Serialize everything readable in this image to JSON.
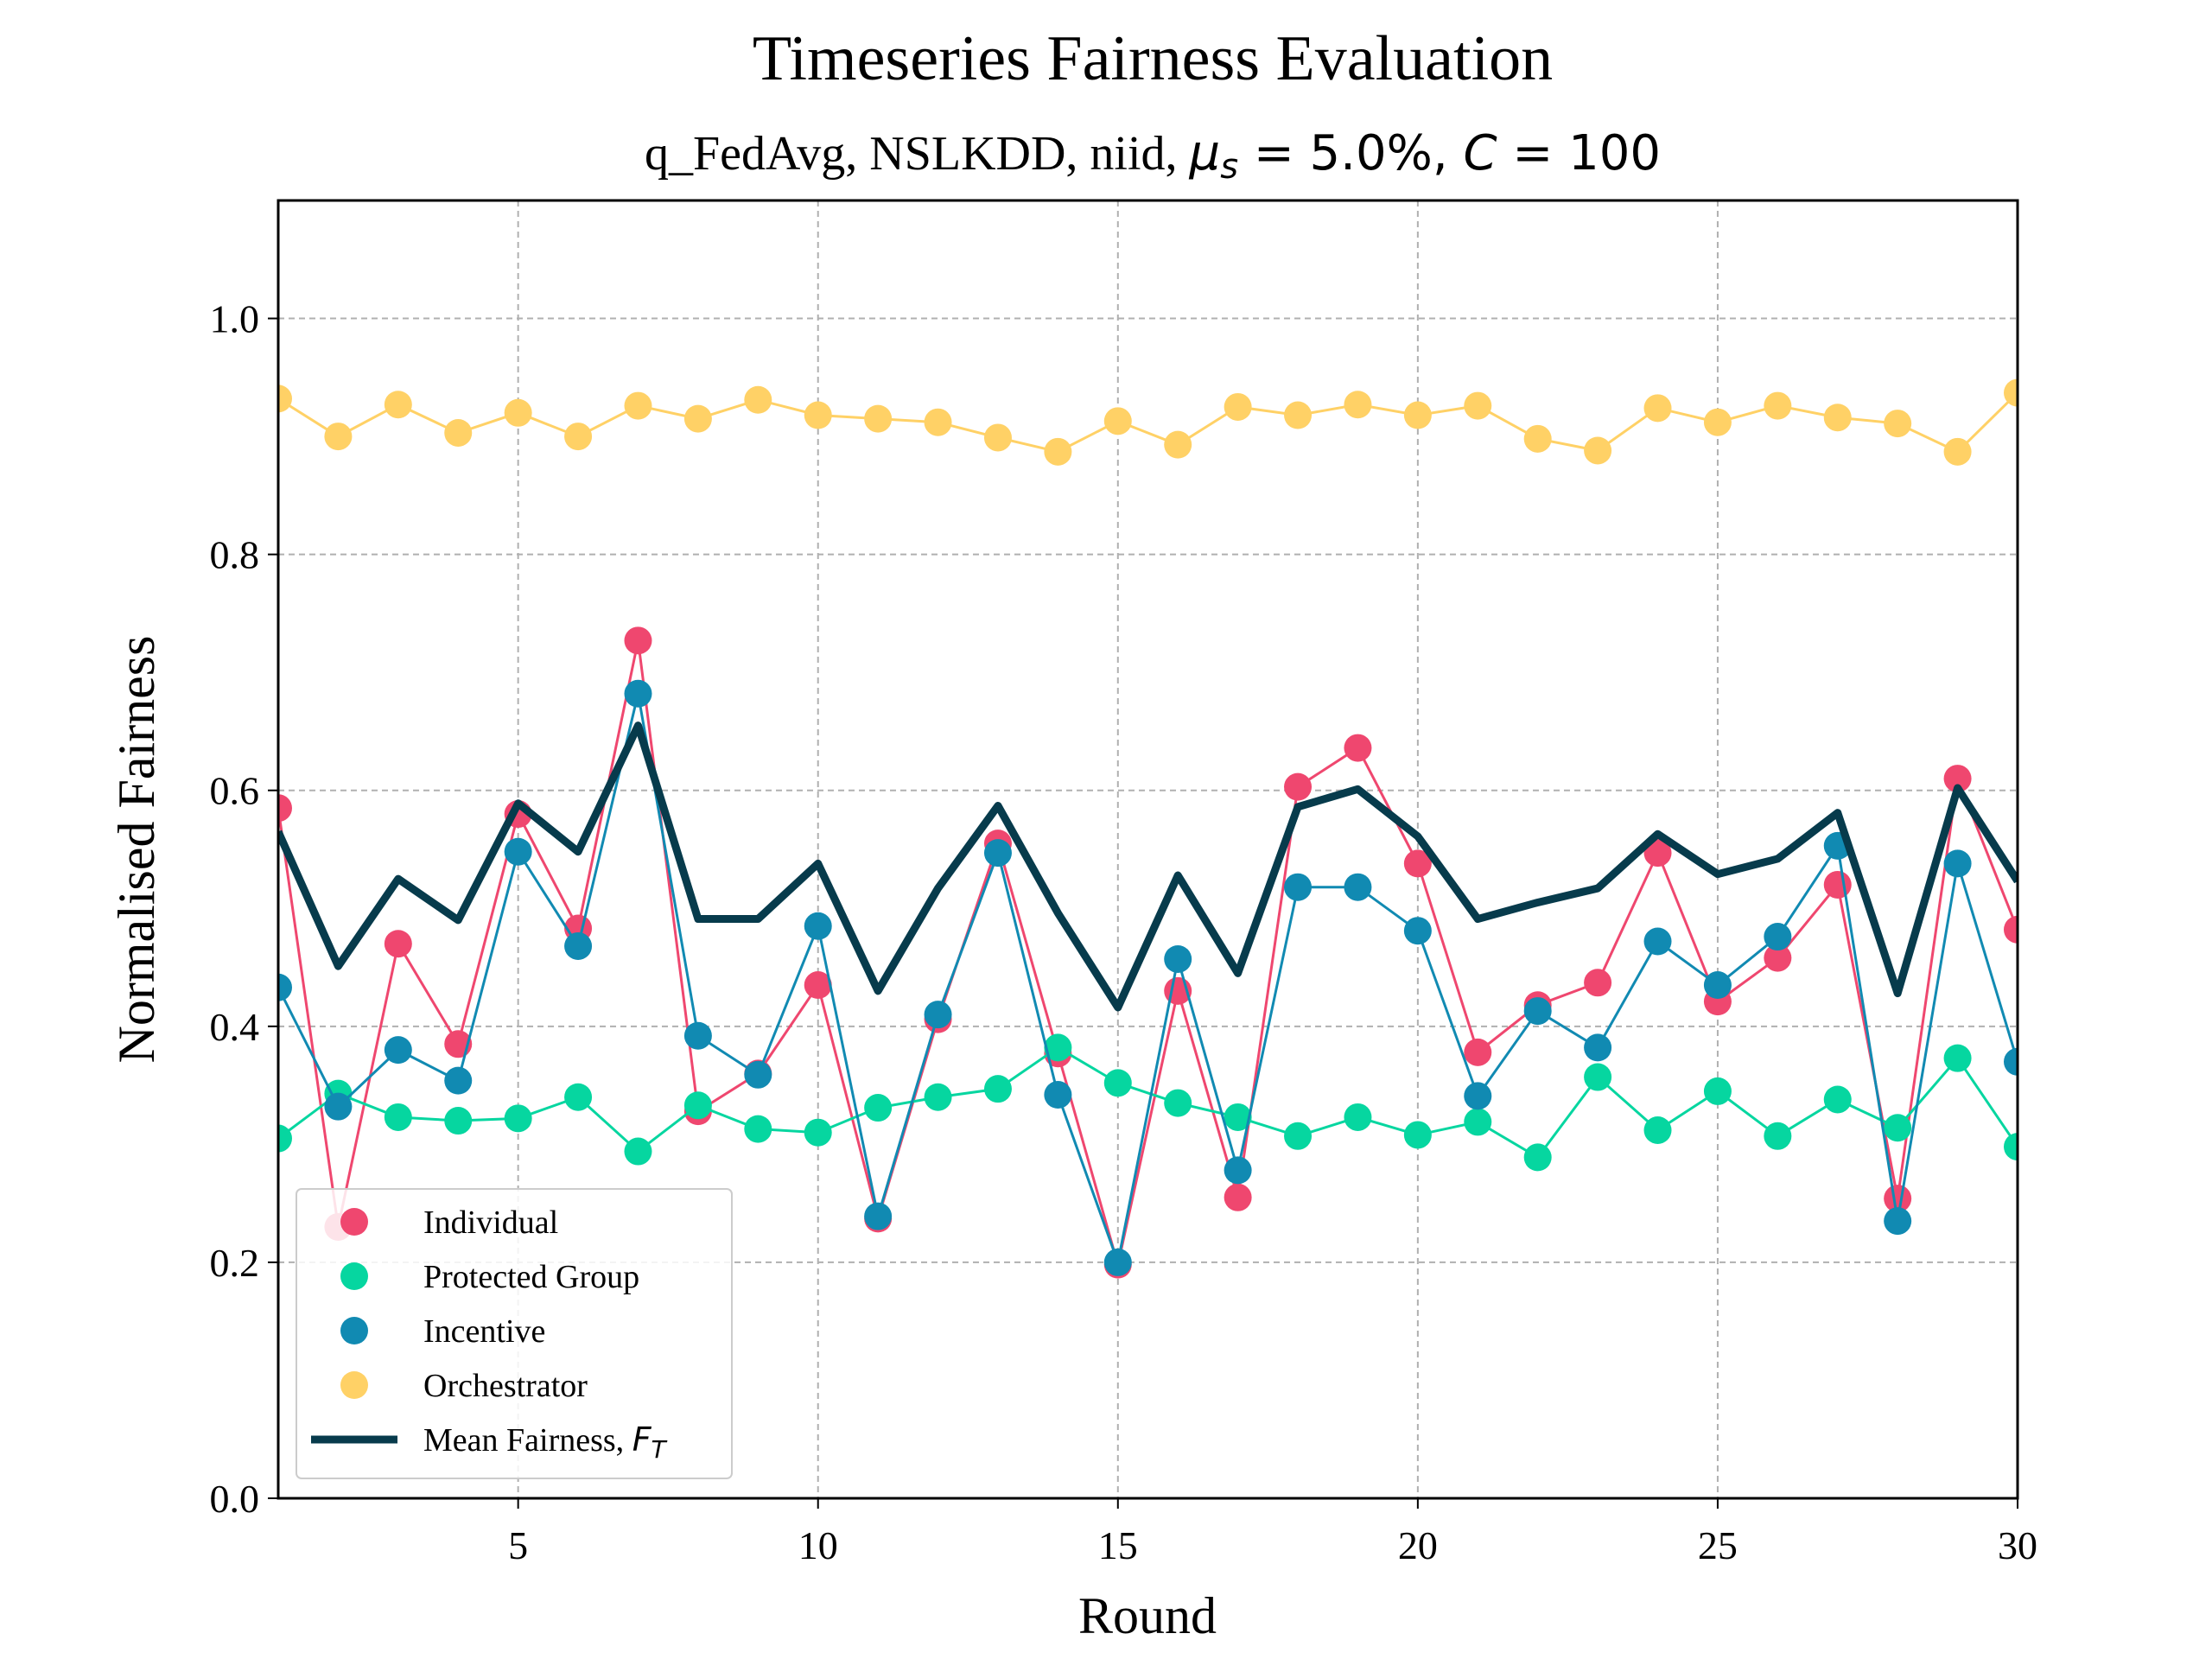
{
  "chart_data": {
    "type": "line",
    "title": "Timeseries Fairness Evaluation",
    "subtitle_plain": "q_FedAvg, NSLKDD, niid, ",
    "subtitle_mu": "μ",
    "subtitle_mu_sub": "s",
    "subtitle_mu_val": " = 5.0%, ",
    "subtitle_c": "C",
    "subtitle_c_val": " = 100",
    "xlabel": "Round",
    "ylabel": "Normalised Fairness",
    "xlim": [
      1,
      30
    ],
    "ylim": [
      0,
      1.1
    ],
    "xticks": [
      5,
      10,
      15,
      20,
      25,
      30
    ],
    "yticks": [
      0.0,
      0.2,
      0.4,
      0.6,
      0.8,
      1.0
    ],
    "ytick_labels": [
      "0.0",
      "0.2",
      "0.4",
      "0.6",
      "0.8",
      "1.0"
    ],
    "grid": true,
    "legend_position": "lower-left",
    "x": [
      1,
      2,
      3,
      4,
      5,
      6,
      7,
      8,
      9,
      10,
      11,
      12,
      13,
      14,
      15,
      16,
      17,
      18,
      19,
      20,
      21,
      22,
      23,
      24,
      25,
      26,
      27,
      28,
      29,
      30
    ],
    "series": [
      {
        "name": "Individual",
        "color": "#ef476f",
        "style": "markers",
        "values": [
          0.585,
          0.23,
          0.47,
          0.385,
          0.58,
          0.483,
          0.727,
          0.328,
          0.36,
          0.435,
          0.237,
          0.406,
          0.555,
          0.377,
          0.198,
          0.43,
          0.255,
          0.603,
          0.636,
          0.538,
          0.378,
          0.418,
          0.437,
          0.547,
          0.421,
          0.458,
          0.52,
          0.254,
          0.61,
          0.482
        ]
      },
      {
        "name": "Protected Group",
        "color": "#06d6a0",
        "style": "markers",
        "values": [
          0.305,
          0.343,
          0.323,
          0.32,
          0.322,
          0.34,
          0.294,
          0.333,
          0.313,
          0.31,
          0.331,
          0.34,
          0.347,
          0.382,
          0.352,
          0.335,
          0.323,
          0.307,
          0.323,
          0.308,
          0.319,
          0.289,
          0.357,
          0.312,
          0.345,
          0.307,
          0.338,
          0.314,
          0.373,
          0.298
        ]
      },
      {
        "name": "Incentive",
        "color": "#118ab2",
        "style": "markers",
        "values": [
          0.433,
          0.332,
          0.38,
          0.354,
          0.548,
          0.468,
          0.682,
          0.392,
          0.359,
          0.485,
          0.239,
          0.41,
          0.547,
          0.342,
          0.2,
          0.457,
          0.278,
          0.518,
          0.518,
          0.481,
          0.341,
          0.413,
          0.382,
          0.472,
          0.435,
          0.476,
          0.553,
          0.235,
          0.538,
          0.37
        ]
      },
      {
        "name": "Orchestrator",
        "color": "#ffd166",
        "style": "markers",
        "values": [
          0.932,
          0.9,
          0.927,
          0.903,
          0.92,
          0.9,
          0.926,
          0.915,
          0.931,
          0.918,
          0.915,
          0.912,
          0.899,
          0.887,
          0.913,
          0.893,
          0.925,
          0.918,
          0.927,
          0.918,
          0.926,
          0.898,
          0.888,
          0.924,
          0.912,
          0.926,
          0.916,
          0.911,
          0.887,
          0.937
        ]
      },
      {
        "name": "Mean Fairness, ",
        "name_math": "F",
        "name_math_sub": "T",
        "color": "#073b4c",
        "style": "thick-line",
        "values": [
          0.565,
          0.451,
          0.525,
          0.49,
          0.589,
          0.548,
          0.655,
          0.491,
          0.491,
          0.538,
          0.43,
          0.517,
          0.587,
          0.496,
          0.416,
          0.528,
          0.445,
          0.586,
          0.601,
          0.561,
          0.491,
          0.505,
          0.517,
          0.563,
          0.529,
          0.542,
          0.581,
          0.428,
          0.602,
          0.523
        ]
      }
    ]
  }
}
